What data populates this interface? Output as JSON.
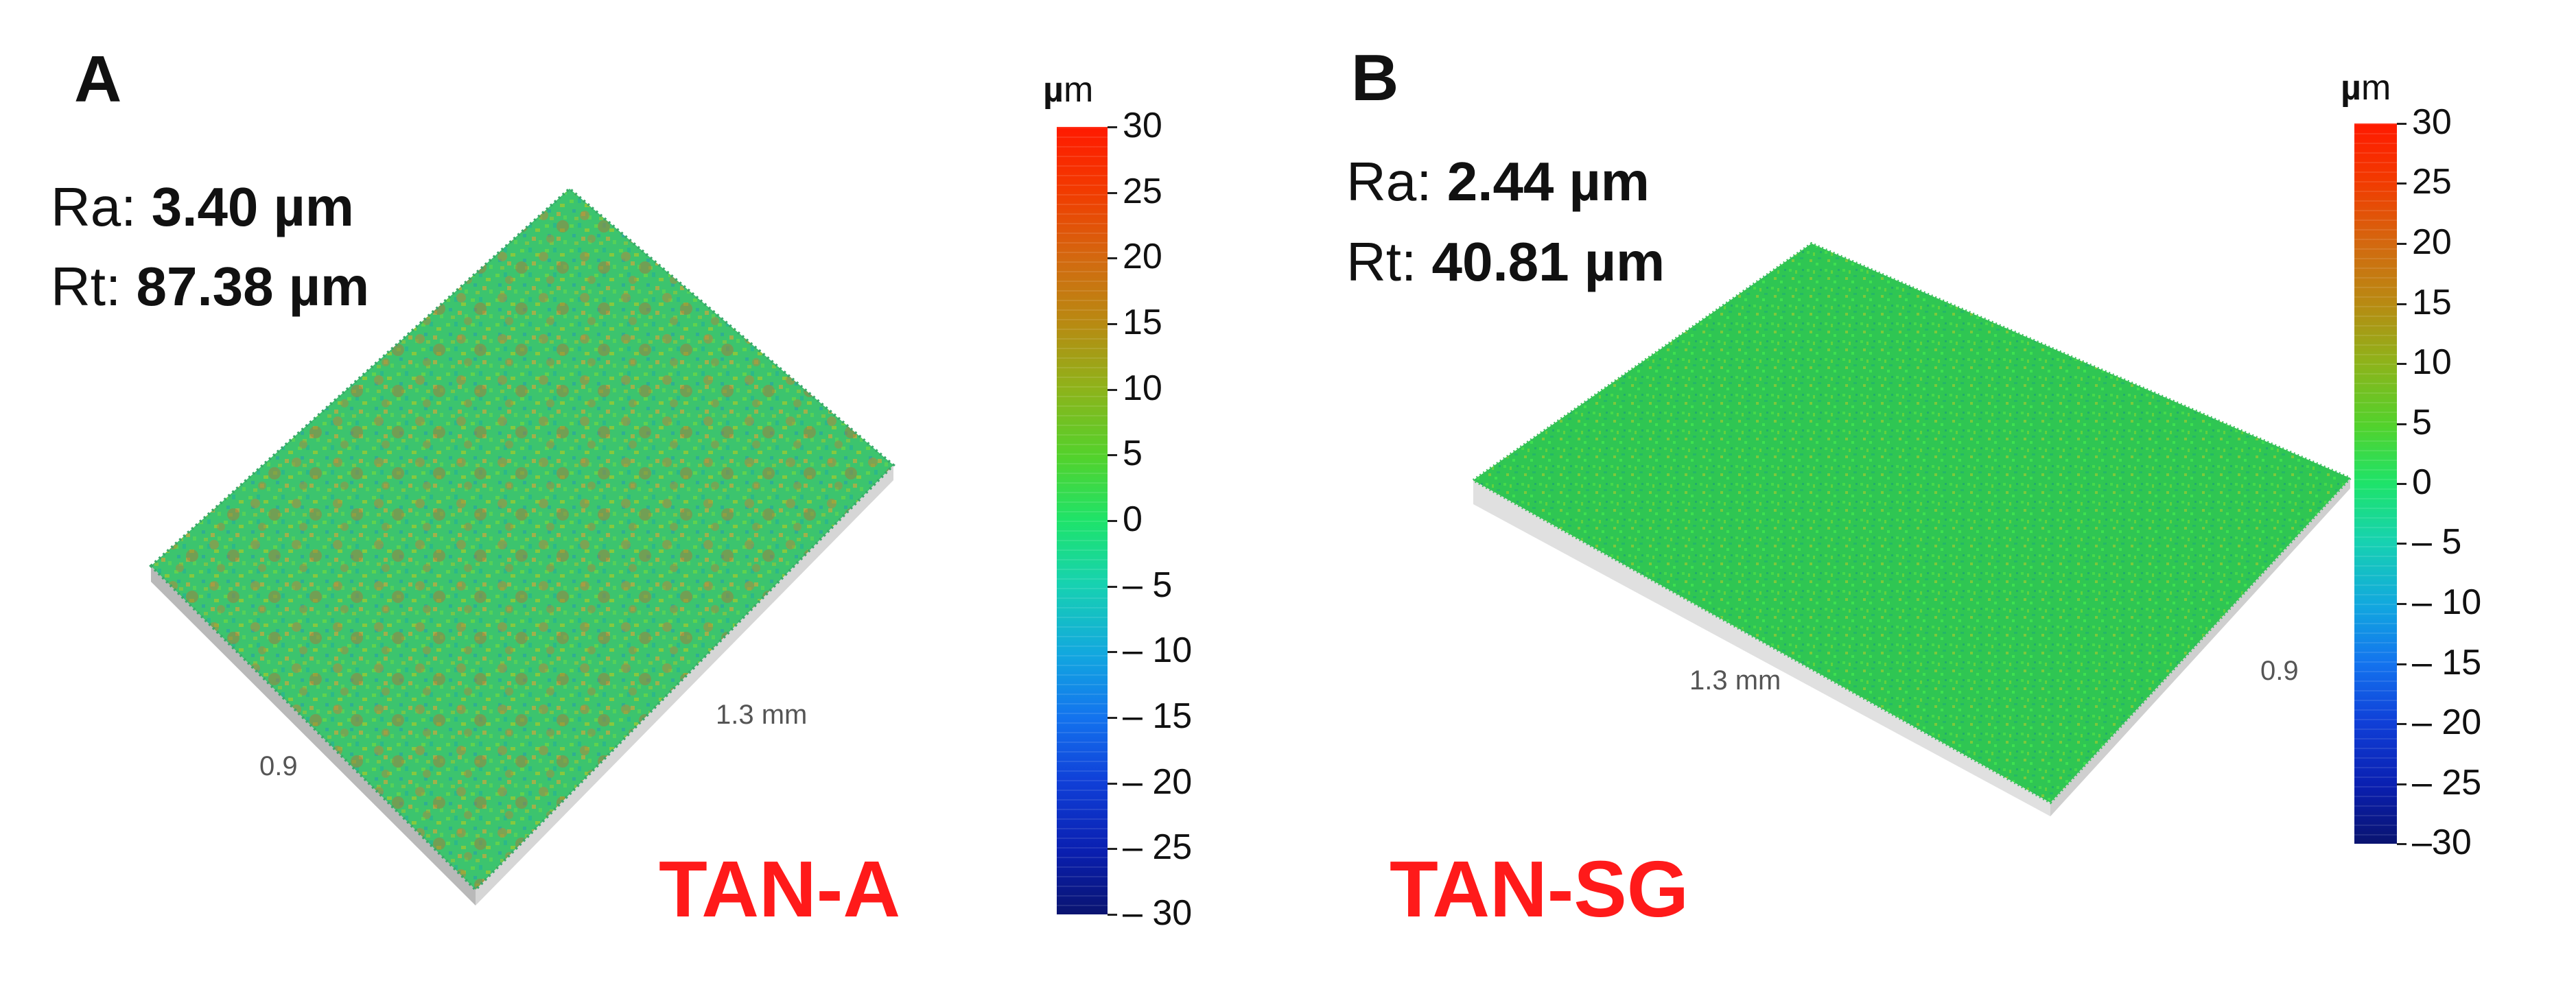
{
  "panels": [
    {
      "letter": "A",
      "ra_label": "Ra: ",
      "ra_value": "3.40 µm",
      "rt_label": "Rt: ",
      "rt_value": "87.38 µm",
      "sample_name": "TAN-A",
      "dim_long": "1.3 mm",
      "dim_short": "0.9",
      "colorbar": {
        "unit_mu": "µ",
        "unit_m": "m",
        "ticks": [
          "30",
          "25",
          "20",
          "15",
          "10",
          "5",
          "0",
          "– 5",
          "– 10",
          "– 15",
          "– 20",
          "– 25",
          "– 30"
        ]
      }
    },
    {
      "letter": "B",
      "ra_label": "Ra: ",
      "ra_value": "2.44 µm",
      "rt_label": "Rt: ",
      "rt_value": "40.81 µm",
      "sample_name": "TAN-SG",
      "dim_long": "1.3 mm",
      "dim_short": "0.9",
      "colorbar": {
        "unit_mu": "µ",
        "unit_m": "m",
        "ticks": [
          "30",
          "25",
          "20",
          "15",
          "10",
          "5",
          "0",
          "– 5",
          "– 10",
          "– 15",
          "– 20",
          "– 25",
          "–30"
        ]
      }
    }
  ]
}
